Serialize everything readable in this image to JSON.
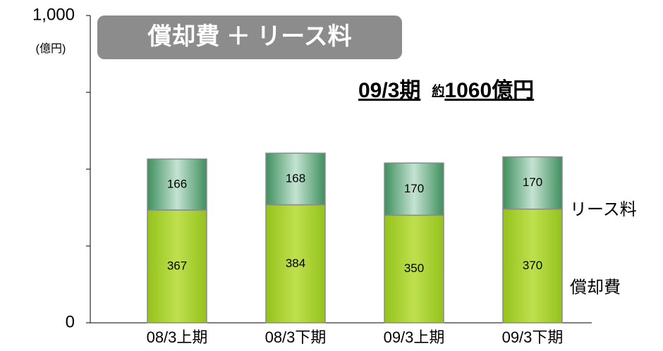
{
  "chart_data": {
    "type": "stacked_bar",
    "title": "償却費 ＋ リース料",
    "y_unit": "(億円)",
    "annotation": [
      "09/3期",
      "約",
      "1060億円"
    ],
    "categories": [
      "08/3上期",
      "08/3下期",
      "09/3上期",
      "09/3下期"
    ],
    "series": [
      {
        "name": "償却費",
        "color": "#a6cf2e",
        "values": [
          367,
          384,
          350,
          370
        ]
      },
      {
        "name": "リース料",
        "color": "#5fa77b",
        "values": [
          166,
          168,
          170,
          170
        ]
      }
    ],
    "ylim": [
      0,
      1000
    ],
    "yticks": [
      0,
      {
        "value": 1000,
        "label": "1,000"
      }
    ],
    "minor_yticks": [
      250,
      500,
      750
    ]
  }
}
